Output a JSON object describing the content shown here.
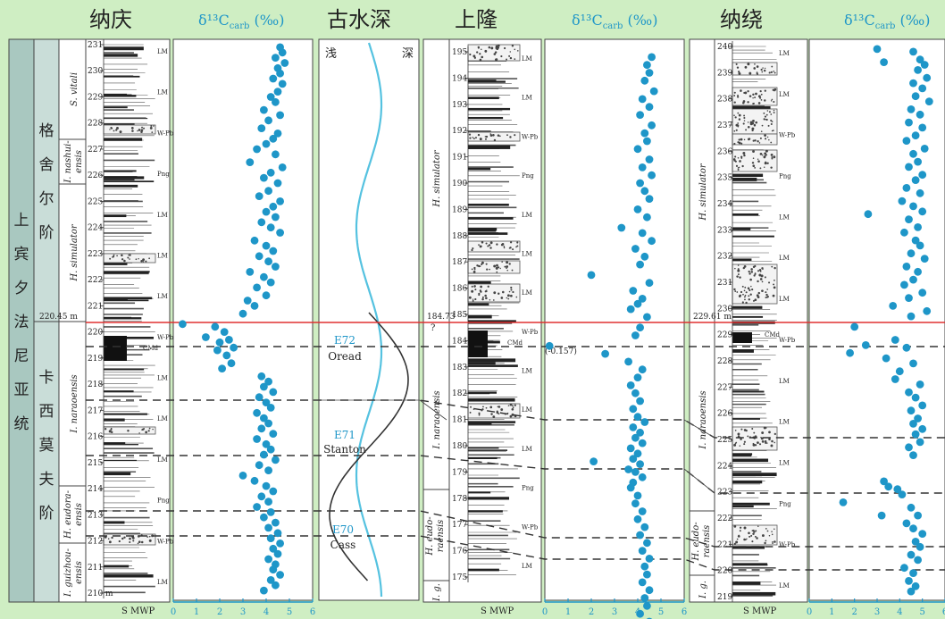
{
  "headers": {
    "naqing": "纳庆",
    "d13c_1": "δ¹³C",
    "d13c_sub": "carb",
    "d13c_unit": " (‰)",
    "paleo_depth": "古水深",
    "shanglong": "上隆",
    "d13c_2": "δ¹³C",
    "naorao": "纳绕",
    "d13c_3": "δ¹³C"
  },
  "stratigraphy": {
    "series_chars": [
      "上",
      "宾",
      "夕",
      "法",
      "尼",
      "亚",
      "统"
    ],
    "stage_upper_chars": [
      "格",
      "舍",
      "尔",
      "阶"
    ],
    "stage_lower_chars": [
      "卡",
      "西",
      "莫",
      "夫",
      "阶"
    ]
  },
  "zones": {
    "s_vitali": "S. vitali",
    "i_nashui_1": "I. nashui-",
    "i_nashui_2": "ensis",
    "h_simulator": "H. simulator",
    "i_naraoensis": "I. naraoensis",
    "h_eudora_1": "H. eudora-",
    "h_eudora_2": "ensis",
    "i_guizhou_1": "I. guizhou-",
    "i_guizhou_2": "ensis",
    "sl_h_simulator": "H. simulator",
    "sl_i_narao": "I. naraoensis",
    "sl_h_eudo_1": "H. eudo-",
    "sl_h_eudo_2": "raensis",
    "sl_ig": "I. g.",
    "nr_h_simulator": "H. simulator",
    "nr_i_narao": "I. naraoensis",
    "nr_h_eudo_1": "H. eudo-",
    "nr_h_eudo_2": "raensis",
    "nr_ig": "I. g."
  },
  "depth_ticks": {
    "naqing": [
      "231",
      "230",
      "229",
      "228",
      "227",
      "226",
      "225",
      "224",
      "223",
      "222",
      "221",
      "220",
      "219",
      "218",
      "217",
      "216",
      "215",
      "214",
      "213",
      "212",
      "211",
      "210 m"
    ],
    "shanglong": [
      "195",
      "194",
      "193",
      "192",
      "191",
      "190",
      "189",
      "188",
      "187",
      "186",
      "185",
      "184",
      "183",
      "182",
      "181",
      "180",
      "179",
      "178",
      "177",
      "176",
      "175"
    ],
    "naorao": [
      "240",
      "239",
      "238",
      "237",
      "236",
      "235",
      "234",
      "233",
      "232",
      "231",
      "230",
      "229",
      "228",
      "227",
      "226",
      "225",
      "224",
      "223",
      "222",
      "221",
      "220",
      "219"
    ]
  },
  "boundary_labels": {
    "naqing": "220.45 m",
    "shanglong": "184.73",
    "shanglong_q": "?",
    "naorao": "229.61 m",
    "outlier": "(-0.157)"
  },
  "lith_labels": [
    "LM",
    "W-Pb",
    "Png",
    "CMd"
  ],
  "col_footer": "S MWP",
  "x_axis": [
    "0",
    "1",
    "2",
    "3",
    "4",
    "5",
    "6"
  ],
  "paleo": {
    "shallow": "浅",
    "deep": "深",
    "events": [
      {
        "code": "E72",
        "name": "Oread"
      },
      {
        "code": "E71",
        "name": "Stanton"
      },
      {
        "code": "E70",
        "name": "Cass"
      }
    ]
  },
  "colors": {
    "background": "#cfeec3",
    "dot": "#1e96c8",
    "boundary": "#e03030",
    "curve": "#55c2e0",
    "header_blue": "#1e96c8",
    "series_fill": "#a9c8c0",
    "stage_fill": "#c9ddd8"
  },
  "chart_data": [
    {
      "type": "scatter",
      "column": "naqing",
      "xlim": [
        0,
        6
      ],
      "x": [
        4.6,
        4.7,
        4.4,
        4.8,
        4.5,
        4.6,
        4.3,
        4.7,
        4.5,
        4.2,
        4.4,
        3.9,
        4.6,
        4.1,
        3.8,
        4.5,
        4.3,
        4.0,
        3.6,
        4.4,
        3.3,
        4.7,
        4.2,
        3.9,
        4.5,
        4.1,
        3.7,
        4.6,
        4.3,
        4.0,
        4.4,
        3.8,
        4.2,
        4.6,
        3.5,
        4.0,
        4.3,
        3.7,
        4.1,
        4.4,
        3.3,
        3.9,
        4.2,
        3.6,
        4.0,
        3.2,
        3.5,
        3.0,
        0.4,
        1.8,
        2.2,
        1.4,
        2.4,
        2.0,
        2.6,
        1.9,
        2.3,
        2.5,
        2.1,
        3.8,
        4.1,
        3.9,
        4.3,
        3.7,
        4.0,
        4.2,
        3.6,
        3.9,
        4.1,
        3.8,
        4.3,
        3.6,
        4.0,
        4.2,
        3.9,
        4.4,
        3.7,
        4.1,
        3.0,
        3.5,
        4.0,
        4.3,
        3.8,
        4.1,
        3.6,
        4.2,
        3.9,
        4.4,
        4.1,
        4.5,
        4.2,
        4.6,
        4.3,
        4.5,
        4.1,
        4.4,
        4.3,
        4.6,
        4.2,
        4.4,
        3.9
      ],
      "y": [
        230.9,
        230.7,
        230.5,
        230.3,
        230.1,
        229.9,
        229.7,
        229.5,
        229.2,
        229.0,
        228.8,
        228.5,
        228.3,
        228.1,
        227.8,
        227.6,
        227.4,
        227.2,
        227.0,
        226.8,
        226.5,
        226.3,
        226.1,
        225.9,
        225.7,
        225.4,
        225.2,
        225.0,
        224.8,
        224.6,
        224.4,
        224.2,
        224.0,
        223.8,
        223.5,
        223.3,
        223.1,
        222.9,
        222.7,
        222.5,
        222.3,
        222.1,
        221.9,
        221.7,
        221.4,
        221.2,
        221.0,
        220.7,
        220.3,
        220.2,
        220.0,
        219.8,
        219.7,
        219.6,
        219.4,
        219.3,
        219.1,
        218.8,
        218.6,
        218.3,
        218.1,
        217.9,
        217.7,
        217.5,
        217.3,
        217.1,
        216.9,
        216.7,
        216.5,
        216.3,
        216.1,
        215.9,
        215.7,
        215.5,
        215.3,
        215.1,
        214.9,
        214.7,
        214.5,
        214.3,
        214.1,
        213.9,
        213.7,
        213.5,
        213.3,
        213.1,
        212.9,
        212.7,
        212.5,
        212.3,
        212.1,
        211.9,
        211.7,
        211.5,
        211.3,
        211.1,
        210.9,
        210.7,
        210.5,
        210.3,
        210.1
      ]
    },
    {
      "type": "scatter",
      "column": "shanglong",
      "xlim": [
        0,
        6
      ],
      "x": [
        4.6,
        4.4,
        4.5,
        4.3,
        4.7,
        4.2,
        4.5,
        4.1,
        4.6,
        4.3,
        4.4,
        4.0,
        4.5,
        4.2,
        4.6,
        4.1,
        4.3,
        4.5,
        4.0,
        4.4,
        3.3,
        4.2,
        4.6,
        3.9,
        2.0,
        4.3,
        4.1,
        4.5,
        3.8,
        4.2,
        4.0,
        3.7,
        4.4,
        4.1,
        3.9,
        0.2,
        2.6,
        3.6,
        4.2,
        4.0,
        3.7,
        3.9,
        4.1,
        3.8,
        4.0,
        4.3,
        3.8,
        4.1,
        3.9,
        4.2,
        3.7,
        4.0,
        3.8,
        4.1,
        3.6,
        3.9,
        4.2,
        3.8,
        3.7,
        2.1,
        4.0,
        3.9,
        4.2,
        4.0,
        4.3,
        4.1,
        4.4,
        4.2,
        4.5,
        4.3,
        4.4,
        4.2,
        4.5,
        4.3,
        4.4,
        4.1,
        4.5,
        4.3,
        4.6
      ],
      "y": [
        194.8,
        194.5,
        194.2,
        193.9,
        193.5,
        193.2,
        192.9,
        192.6,
        192.2,
        191.9,
        191.6,
        191.3,
        190.9,
        190.6,
        190.3,
        190.0,
        189.7,
        189.4,
        189.0,
        188.7,
        188.3,
        188.1,
        187.8,
        187.5,
        186.5,
        187.2,
        186.9,
        186.2,
        185.9,
        185.6,
        185.4,
        185.2,
        184.9,
        184.5,
        184.2,
        183.8,
        183.5,
        183.2,
        182.9,
        182.6,
        182.3,
        182.0,
        181.7,
        181.4,
        181.1,
        180.9,
        180.7,
        180.5,
        180.3,
        180.1,
        179.9,
        179.7,
        179.5,
        179.3,
        179.1,
        179.0,
        178.8,
        178.6,
        178.4,
        179.4,
        178.1,
        177.8,
        177.5,
        177.2,
        176.9,
        176.6,
        176.3,
        176.0,
        175.7,
        175.4,
        175.1,
        174.8,
        174.5,
        174.2,
        173.9,
        173.6,
        173.3,
        173.0,
        172.7
      ]
    },
    {
      "type": "scatter",
      "column": "naorao",
      "xlim": [
        0,
        6
      ],
      "x": [
        3.0,
        3.3,
        4.6,
        4.9,
        5.1,
        4.8,
        5.2,
        4.6,
        5.0,
        4.7,
        5.3,
        4.5,
        4.9,
        4.4,
        5.0,
        4.7,
        4.3,
        5.1,
        4.6,
        4.8,
        4.4,
        5.0,
        2.6,
        4.7,
        4.3,
        4.9,
        4.1,
        4.6,
        5.0,
        4.4,
        4.8,
        4.2,
        4.7,
        4.9,
        4.5,
        5.1,
        4.3,
        4.8,
        4.6,
        4.2,
        5.0,
        4.4,
        3.7,
        5.2,
        4.5,
        2.0,
        2.5,
        1.8,
        3.8,
        4.3,
        3.4,
        4.6,
        4.0,
        3.8,
        4.9,
        4.4,
        4.7,
        5.0,
        4.5,
        4.8,
        4.6,
        5.0,
        4.7,
        4.9,
        4.4,
        4.6,
        3.3,
        3.5,
        4.1,
        3.9,
        1.5,
        3.2,
        4.5,
        4.8,
        4.3,
        4.6,
        5.0,
        4.7,
        4.9,
        4.5,
        4.8,
        4.2,
        4.6,
        4.4,
        4.7,
        4.5
      ],
      "y": [
        239.9,
        239.4,
        239.8,
        239.5,
        239.3,
        239.1,
        238.8,
        238.6,
        238.4,
        238.1,
        237.9,
        237.6,
        237.4,
        237.1,
        236.9,
        236.6,
        236.4,
        236.1,
        235.9,
        235.6,
        235.4,
        235.1,
        233.6,
        234.9,
        234.6,
        234.4,
        234.1,
        233.9,
        233.7,
        233.4,
        233.1,
        232.9,
        232.6,
        232.4,
        232.1,
        231.9,
        231.6,
        231.4,
        231.1,
        230.9,
        230.6,
        230.4,
        230.1,
        229.9,
        229.7,
        229.3,
        228.6,
        228.3,
        228.8,
        228.5,
        228.1,
        227.9,
        227.6,
        227.3,
        227.1,
        226.8,
        226.6,
        226.3,
        226.1,
        225.8,
        225.6,
        225.4,
        225.2,
        224.9,
        224.7,
        224.4,
        223.4,
        223.2,
        222.9,
        223.1,
        222.6,
        222.1,
        222.4,
        222.1,
        221.8,
        221.6,
        221.4,
        221.1,
        220.9,
        220.6,
        220.4,
        220.1,
        219.9,
        219.6,
        219.4,
        219.2
      ]
    }
  ]
}
